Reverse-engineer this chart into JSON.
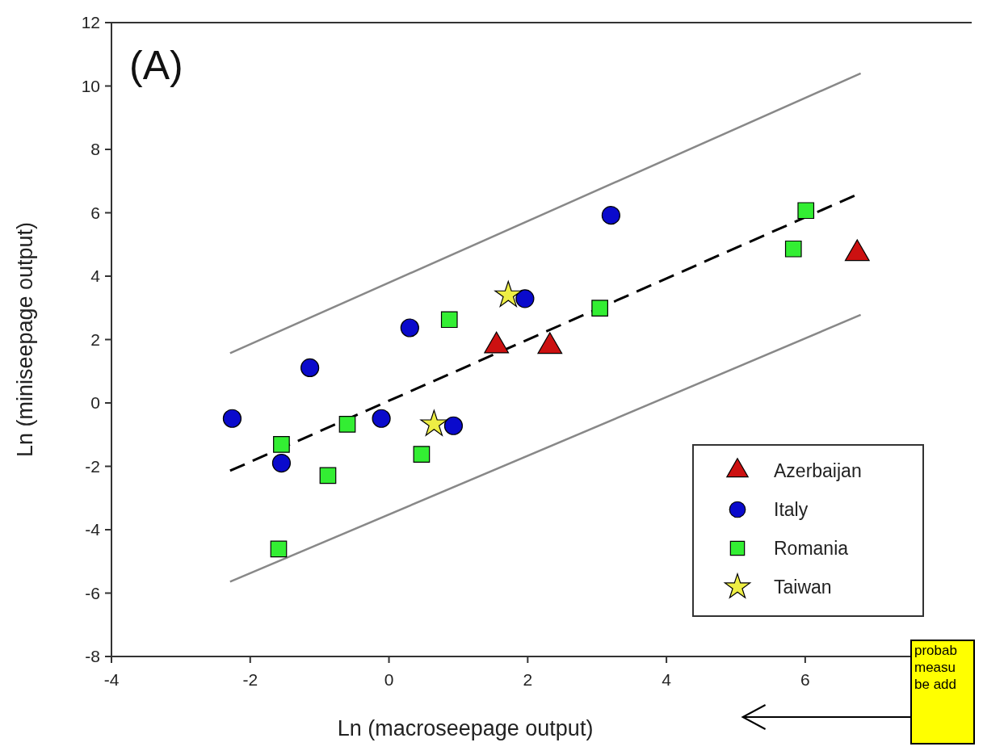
{
  "chart_data": {
    "type": "scatter",
    "title": "(A)",
    "xlabel": "Ln (macroseepage output)",
    "ylabel": "Ln (miniseepage output)",
    "xlim": [
      -4,
      8.4
    ],
    "ylim": [
      -8,
      12
    ],
    "xticks": [
      -4,
      -2,
      0,
      2,
      4,
      6
    ],
    "yticks": [
      -8,
      -6,
      -4,
      -2,
      0,
      2,
      4,
      6,
      8,
      10,
      12
    ],
    "grid": false,
    "legend": "bottom right",
    "series": [
      {
        "type": "line",
        "color": "#888888",
        "line_style": "solid",
        "x": [
          -2.29,
          6.8
        ],
        "values": [
          1.57,
          10.4
        ]
      },
      {
        "type": "line",
        "color": "#888888",
        "line_style": "solid",
        "x": [
          -2.29,
          6.8
        ],
        "values": [
          -5.64,
          2.78
        ]
      },
      {
        "type": "line",
        "color": "#000000",
        "line_style": "dashed",
        "x": [
          -2.29,
          6.71
        ],
        "values": [
          -2.14,
          6.54
        ]
      },
      {
        "name": "Azerbaijan",
        "color": "#cc1111",
        "marker": "triangle",
        "x": [
          1.55,
          2.32,
          6.75
        ],
        "values": [
          1.8,
          1.78,
          4.71
        ]
      },
      {
        "name": "Italy",
        "color": "#0a0acc",
        "marker": "circle",
        "x": [
          -2.26,
          -1.14,
          0.3,
          -0.11,
          -1.55,
          0.93,
          3.2,
          1.96
        ],
        "values": [
          -0.49,
          1.11,
          2.37,
          -0.49,
          -1.9,
          -0.72,
          5.92,
          3.29
        ]
      },
      {
        "name": "Romania",
        "color": "#33ee33",
        "marker": "square",
        "x": [
          -1.55,
          -0.6,
          -0.88,
          0.47,
          0.87,
          -1.59,
          3.04,
          5.83,
          6.01
        ],
        "values": [
          -1.31,
          -0.67,
          -2.29,
          -1.62,
          2.63,
          -4.61,
          2.99,
          4.86,
          6.07
        ]
      },
      {
        "name": "Taiwan",
        "color": "#eeee44",
        "marker": "star",
        "x": [
          1.72,
          0.65
        ],
        "values": [
          3.4,
          -0.67
        ]
      }
    ],
    "annotations": [
      "probab\nmeasu\nbe add"
    ]
  }
}
